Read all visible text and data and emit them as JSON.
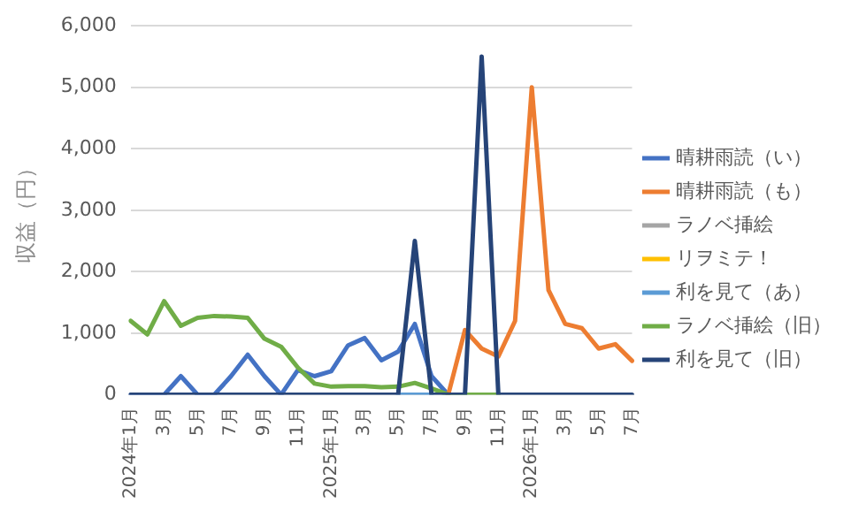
{
  "chart_data": {
    "type": "line",
    "ylabel": "収益（円）",
    "categories": [
      "2024年1月",
      null,
      "3月",
      null,
      "5月",
      null,
      "7月",
      null,
      "9月",
      null,
      "11月",
      null,
      "2025年1月",
      null,
      "3月",
      null,
      "5月",
      null,
      "7月",
      null,
      "9月",
      null,
      "11月",
      null,
      "2026年1月",
      null,
      "3月",
      null,
      "5月",
      null,
      "7月"
    ],
    "ylim": [
      0,
      6000
    ],
    "yticks": [
      {
        "value": 0,
        "label": "0"
      },
      {
        "value": 1000,
        "label": "1,000"
      },
      {
        "value": 2000,
        "label": "2,000"
      },
      {
        "value": 3000,
        "label": "3,000"
      },
      {
        "value": 4000,
        "label": "4,000"
      },
      {
        "value": 5000,
        "label": "5,000"
      },
      {
        "value": 6000,
        "label": "6,000"
      }
    ],
    "grid": "y",
    "legend": "right",
    "marker": "none",
    "line_style": "solid",
    "series": [
      {
        "name": "晴耕雨読（い）",
        "color": "#4472c4",
        "values": [
          0,
          0,
          0,
          300,
          0,
          0,
          300,
          650,
          300,
          0,
          400,
          300,
          380,
          800,
          920,
          560,
          700,
          1150,
          300,
          0,
          null,
          null,
          null,
          null,
          null,
          null,
          null,
          null,
          null,
          null,
          null
        ]
      },
      {
        "name": "晴耕雨読（も）",
        "color": "#ed7d31",
        "values": [
          null,
          null,
          null,
          null,
          null,
          null,
          null,
          null,
          null,
          null,
          null,
          null,
          null,
          null,
          null,
          null,
          null,
          null,
          null,
          0,
          1050,
          750,
          620,
          1200,
          5000,
          1700,
          1150,
          1080,
          750,
          820,
          550
        ]
      },
      {
        "name": "ラノベ挿絵",
        "color": "#a5a5a5",
        "values": [
          null,
          null,
          null,
          null,
          null,
          null,
          null,
          null,
          null,
          null,
          null,
          null,
          null,
          null,
          null,
          null,
          null,
          null,
          null,
          null,
          null,
          null,
          null,
          null,
          null,
          null,
          null,
          null,
          null,
          null,
          null
        ]
      },
      {
        "name": "リヲミテ！",
        "color": "#ffc000",
        "values": [
          null,
          null,
          null,
          null,
          null,
          null,
          null,
          null,
          null,
          null,
          null,
          null,
          null,
          null,
          null,
          null,
          null,
          null,
          null,
          null,
          null,
          null,
          null,
          null,
          null,
          null,
          null,
          null,
          null,
          null,
          null
        ]
      },
      {
        "name": "利を見て（あ）",
        "color": "#5b9bd5",
        "values": [
          null,
          null,
          null,
          null,
          null,
          null,
          null,
          null,
          null,
          null,
          null,
          null,
          null,
          null,
          null,
          null,
          0,
          0,
          0,
          null,
          null,
          null,
          null,
          null,
          null,
          null,
          null,
          null,
          null,
          null,
          null
        ]
      },
      {
        "name": "ラノベ挿絵（旧）",
        "color": "#70ad47",
        "values": [
          1200,
          980,
          1520,
          1120,
          1250,
          1280,
          1270,
          1250,
          910,
          780,
          440,
          180,
          130,
          140,
          140,
          120,
          130,
          190,
          100,
          0,
          0,
          0,
          0,
          null,
          null,
          null,
          null,
          null,
          null,
          null,
          null
        ]
      },
      {
        "name": "利を見て（旧）",
        "color": "#264478",
        "values": [
          0,
          0,
          0,
          0,
          0,
          0,
          0,
          0,
          0,
          0,
          0,
          0,
          0,
          0,
          0,
          0,
          0,
          2500,
          0,
          0,
          0,
          5500,
          0,
          0,
          0,
          0,
          0,
          0,
          0,
          0,
          0
        ]
      }
    ]
  }
}
